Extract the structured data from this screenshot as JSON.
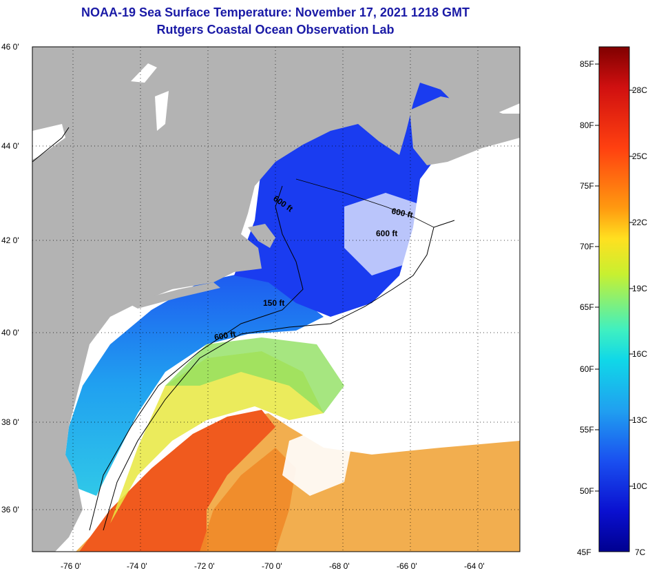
{
  "title": {
    "line1": "NOAA-19 Sea Surface Temperature:  November 17, 2021 1218 GMT",
    "line2": "Rutgers Coastal Ocean Observation Lab"
  },
  "map": {
    "lat_labels": [
      {
        "value": 46,
        "text": "46 0'"
      },
      {
        "value": 44,
        "text": "44 0'"
      },
      {
        "value": 42,
        "text": "42 0'"
      },
      {
        "value": 40,
        "text": "40 0'"
      },
      {
        "value": 38,
        "text": "38 0'"
      },
      {
        "value": 36,
        "text": "36 0'"
      }
    ],
    "lon_labels": [
      {
        "value": -76,
        "text": "-76 0'"
      },
      {
        "value": -74,
        "text": "-74 0'"
      },
      {
        "value": -72,
        "text": "-72 0'"
      },
      {
        "value": -70,
        "text": "-70 0'"
      },
      {
        "value": -68,
        "text": "-68 0'"
      },
      {
        "value": -66,
        "text": "-66 0'"
      },
      {
        "value": -64,
        "text": "-64 0'"
      }
    ],
    "depth_labels": [
      "600 ft",
      "600 ft",
      "600 ft",
      "150 ft",
      "600 ft"
    ],
    "colors": {
      "land": "#b3b3b3",
      "nodata": "#ffffff",
      "cold": "#1a3cf0",
      "warm": "#f05a1e"
    }
  },
  "scale": {
    "f_labels": [
      "85F",
      "80F",
      "75F",
      "70F",
      "65F",
      "60F",
      "55F",
      "50F",
      "45F"
    ],
    "c_labels": [
      "28C",
      "25C",
      "22C",
      "19C",
      "16C",
      "13C",
      "10C",
      "7C"
    ],
    "stops": [
      "#800000",
      "#d01010",
      "#ff4010",
      "#ff9a10",
      "#ffe020",
      "#c8f030",
      "#40f0c0",
      "#10d8e8",
      "#20a0f0",
      "#1a50f0",
      "#0a10d0",
      "#000090"
    ]
  }
}
